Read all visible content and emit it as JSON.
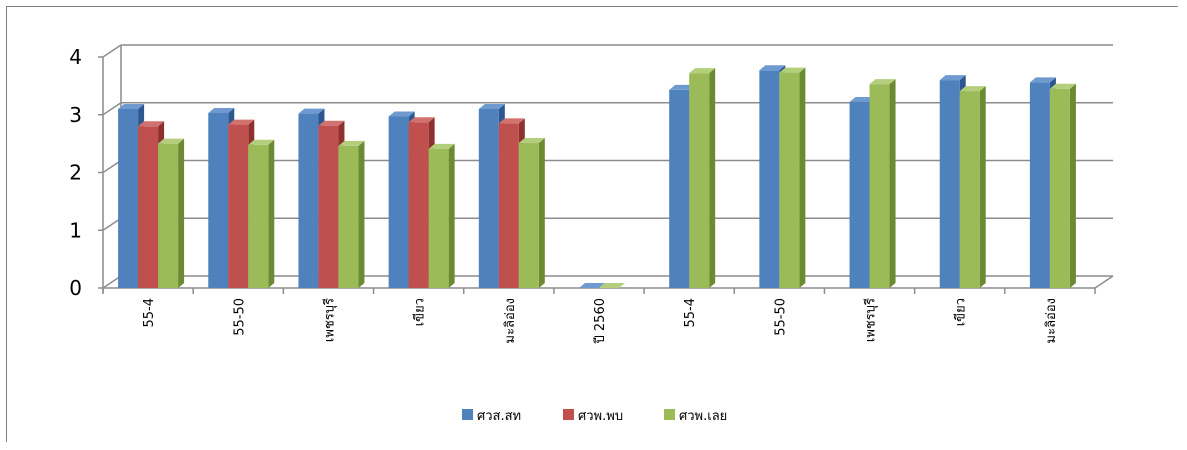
{
  "chart_data": {
    "type": "bar",
    "ylim": [
      0,
      4
    ],
    "yticks": [
      0,
      1,
      2,
      3,
      4
    ],
    "grid": true,
    "legend_position": "bottom",
    "categories": [
      "55-4",
      "55-50",
      "เพชรบุรี",
      "เขียว",
      "มะลิอ่อง",
      "ปี 2560",
      "55-4",
      "55-50",
      "เพชรบุรี",
      "เขียว",
      "มะลิอ่อง"
    ],
    "series": [
      {
        "name": "ศวส.สท",
        "color": "#4f81bd",
        "top": "#6f9ad0",
        "side": "#2e5790",
        "values": [
          3.1,
          3.03,
          3.02,
          2.97,
          3.1,
          0,
          3.43,
          3.77,
          3.22,
          3.6,
          3.56
        ]
      },
      {
        "name": "ศวพ.พบ",
        "color": "#c0504d",
        "top": "#d2726f",
        "side": "#8e302e",
        "values": [
          2.8,
          2.83,
          2.81,
          2.87,
          2.85,
          null,
          null,
          null,
          null,
          null,
          null
        ]
      },
      {
        "name": "ศวพ.เลย",
        "color": "#9bbb59",
        "top": "#b4cf7c",
        "side": "#6b8a32",
        "values": [
          2.5,
          2.48,
          2.46,
          2.41,
          2.51,
          0,
          3.72,
          3.73,
          3.53,
          3.41,
          3.45
        ]
      }
    ]
  }
}
